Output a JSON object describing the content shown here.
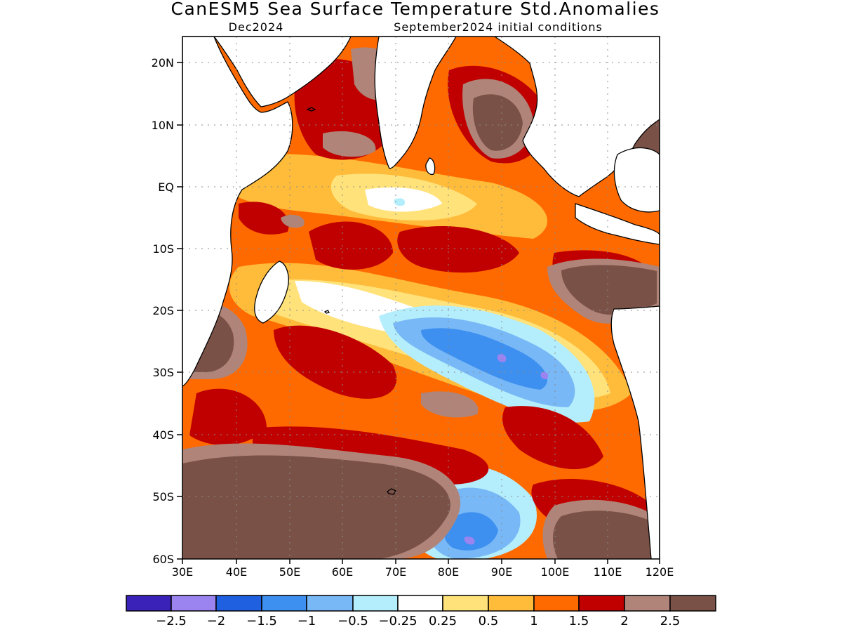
{
  "title": "CanESM5 Sea Surface Temperature Std.Anomalies",
  "valid_month": "Dec2024",
  "init_conditions": "September2024 initial conditions",
  "lat_ticks": [
    "20N",
    "10N",
    "EQ",
    "10S",
    "20S",
    "30S",
    "40S",
    "50S",
    "60S"
  ],
  "lon_ticks": [
    "30E",
    "40E",
    "50E",
    "60E",
    "70E",
    "80E",
    "90E",
    "100E",
    "110E",
    "120E"
  ],
  "legend": {
    "colors": [
      "#3a22b8",
      "#9b84f0",
      "#1f60e0",
      "#3d8ff0",
      "#78b8f6",
      "#b4eefc",
      "#ffffff",
      "#ffe27a",
      "#ffbb3a",
      "#ff6a00",
      "#c00000",
      "#b08478",
      "#7a5146"
    ],
    "labels": [
      "-2.5",
      "-2",
      "-1.5",
      "-1",
      "-0.5",
      "-0.25",
      "0.25",
      "0.5",
      "1",
      "1.5",
      "2",
      "2.5"
    ]
  }
}
